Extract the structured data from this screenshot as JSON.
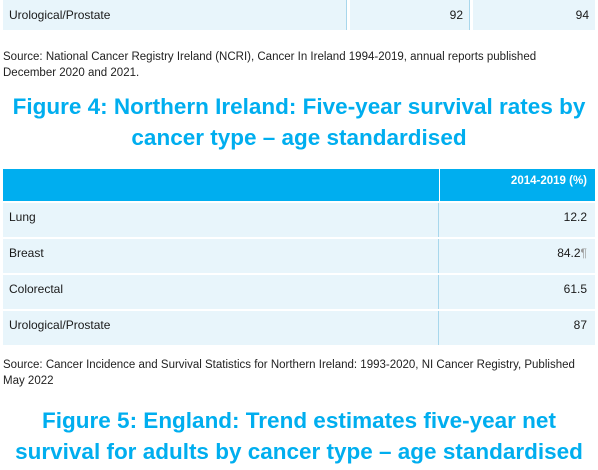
{
  "top_table": {
    "row": {
      "label": "Urological/Prostate",
      "col2": "92",
      "col3": "94"
    }
  },
  "source1": {
    "line1": "Source: National Cancer Registry Ireland (NCRI), Cancer In Ireland 1994-2019, annual reports published",
    "line2": "December 2020 and 2021."
  },
  "figure4": {
    "title_line1": "Figure 4: Northern Ireland: Five-year survival rates by",
    "title_line2": "cancer type – age standardised"
  },
  "ni_table": {
    "header": "2014-2019 (%)",
    "rows": [
      {
        "label": "Lung",
        "value": "12.2"
      },
      {
        "label": "Breast",
        "value": "84.2",
        "mark": "¶"
      },
      {
        "label": "Colorectal",
        "value": "61.5"
      },
      {
        "label": "Urological/Prostate",
        "value": "87"
      }
    ]
  },
  "source2": {
    "line1": "Source: Cancer Incidence and Survival Statistics for Northern Ireland: 1993-2020, NI Cancer Registry, Published",
    "line2": "May 2022"
  },
  "figure5": {
    "title_line1": "Figure 5: England: Trend estimates five-year net",
    "title_line2": "survival for adults by cancer type – age standardised"
  }
}
